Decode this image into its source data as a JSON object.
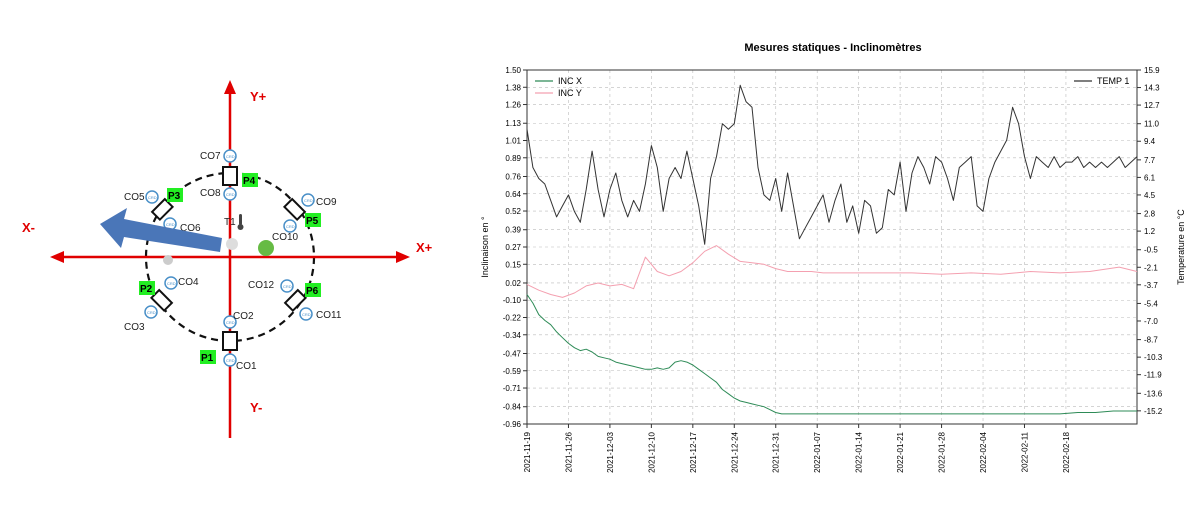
{
  "diagram": {
    "axis_labels": {
      "y_plus": "Y+",
      "y_minus": "Y-",
      "x_plus": "X+",
      "x_minus": "X-"
    },
    "thermometer_label": "T1",
    "co_labels": {
      "co1": "CO1",
      "co2": "CO2",
      "co3": "CO3",
      "co4": "CO4",
      "co5": "CO5",
      "co6": "CO6",
      "co7": "CO7",
      "co8": "CO8",
      "co9": "CO9",
      "co10": "CO10",
      "co11": "CO11",
      "co12": "CO12"
    },
    "p_labels": {
      "p1": "P1",
      "p2": "P2",
      "p3": "P3",
      "p4": "P4",
      "p5": "P5",
      "p6": "P6"
    },
    "sensor_text": "CRD",
    "colors": {
      "axes": "#e00000",
      "p_box": "#22ee22",
      "arrow": "#4a76b8",
      "dot": "#66bb44",
      "sensor": "#4a90c8"
    }
  },
  "chart_data": {
    "type": "line",
    "title": "Mesures statiques - Inclinomètres",
    "ylabel": "Inclinaison en °",
    "y2label": "Temperature en °C",
    "x_ticks": [
      "2021-11-19",
      "2021-11-26",
      "2021-12-03",
      "2021-12-10",
      "2021-12-17",
      "2021-12-24",
      "2021-12-31",
      "2022-01-07",
      "2022-01-14",
      "2022-01-21",
      "2022-01-28",
      "2022-02-04",
      "2022-02-11",
      "2022-02-18"
    ],
    "y_ticks": [
      "1.50",
      "1.38",
      "1.26",
      "1.13",
      "1.01",
      "0.89",
      "0.76",
      "0.64",
      "0.52",
      "0.39",
      "0.27",
      "0.15",
      "0.02",
      "-0.10",
      "-0.22",
      "-0.34",
      "-0.47",
      "-0.59",
      "-0.71",
      "-0.84",
      "-0.96"
    ],
    "y2_ticks": [
      "15.9",
      "14.3",
      "12.7",
      "11.0",
      "9.4",
      "7.7",
      "6.1",
      "4.5",
      "2.8",
      "1.2",
      "-0.5",
      "-2.1",
      "-3.7",
      "-5.4",
      "-7.0",
      "-8.7",
      "-10.3",
      "-11.9",
      "-13.6",
      "-15.2"
    ],
    "ylim": [
      -0.96,
      1.5
    ],
    "y2lim": [
      -16.4,
      15.9
    ],
    "xlim_days": [
      0,
      103
    ],
    "grid": true,
    "legend_left": [
      "INC X",
      "INC Y"
    ],
    "legend_right": [
      "TEMP 1"
    ],
    "colors": {
      "inc_x": "#2e8b57",
      "inc_y": "#f4a0b0",
      "temp": "#333333",
      "grid": "#bbbbbb"
    },
    "series": [
      {
        "name": "INC X",
        "axis": "left",
        "x_days": [
          0,
          1,
          2,
          3,
          4,
          5,
          6,
          7,
          8,
          9,
          10,
          11,
          12,
          13,
          14,
          15,
          16,
          17,
          18,
          19,
          20,
          21,
          22,
          23,
          24,
          25,
          26,
          27,
          28,
          29,
          30,
          31,
          32,
          33,
          34,
          35,
          36,
          37,
          38,
          39,
          40,
          41,
          42,
          43,
          44,
          45,
          46,
          47,
          48,
          49,
          50,
          52,
          55,
          58,
          60,
          63,
          66,
          70,
          73,
          76,
          80,
          83,
          86,
          90,
          93,
          96,
          99,
          101,
          103
        ],
        "values": [
          -0.06,
          -0.12,
          -0.2,
          -0.24,
          -0.27,
          -0.32,
          -0.36,
          -0.4,
          -0.43,
          -0.45,
          -0.44,
          -0.46,
          -0.49,
          -0.5,
          -0.51,
          -0.53,
          -0.54,
          -0.55,
          -0.56,
          -0.57,
          -0.58,
          -0.58,
          -0.57,
          -0.58,
          -0.57,
          -0.53,
          -0.52,
          -0.53,
          -0.55,
          -0.58,
          -0.61,
          -0.64,
          -0.67,
          -0.72,
          -0.75,
          -0.78,
          -0.8,
          -0.81,
          -0.82,
          -0.83,
          -0.84,
          -0.86,
          -0.88,
          -0.89,
          -0.89,
          -0.89,
          -0.89,
          -0.89,
          -0.89,
          -0.89,
          -0.89,
          -0.89,
          -0.89,
          -0.89,
          -0.89,
          -0.89,
          -0.89,
          -0.89,
          -0.89,
          -0.89,
          -0.89,
          -0.89,
          -0.89,
          -0.89,
          -0.88,
          -0.88,
          -0.87,
          -0.87,
          -0.87
        ]
      },
      {
        "name": "INC Y",
        "axis": "left",
        "x_days": [
          0,
          2,
          4,
          6,
          8,
          10,
          12,
          14,
          16,
          18,
          20,
          22,
          24,
          26,
          28,
          30,
          32,
          34,
          36,
          38,
          40,
          42,
          44,
          46,
          48,
          50,
          55,
          60,
          65,
          70,
          75,
          80,
          85,
          90,
          95,
          100,
          103
        ],
        "values": [
          0.01,
          -0.03,
          -0.06,
          -0.08,
          -0.05,
          0.0,
          0.02,
          0.0,
          0.01,
          -0.02,
          0.2,
          0.1,
          0.07,
          0.1,
          0.16,
          0.24,
          0.28,
          0.22,
          0.17,
          0.16,
          0.15,
          0.12,
          0.1,
          0.1,
          0.1,
          0.09,
          0.09,
          0.09,
          0.09,
          0.08,
          0.09,
          0.08,
          0.1,
          0.09,
          0.1,
          0.13,
          0.1
        ]
      },
      {
        "name": "TEMP 1",
        "axis": "right",
        "x_days": [
          0,
          1,
          2,
          3,
          4,
          5,
          6,
          7,
          8,
          9,
          10,
          11,
          12,
          13,
          14,
          15,
          16,
          17,
          18,
          19,
          20,
          21,
          22,
          23,
          24,
          25,
          26,
          27,
          28,
          29,
          30,
          31,
          32,
          33,
          34,
          35,
          36,
          37,
          38,
          39,
          40,
          41,
          42,
          43,
          44,
          45,
          46,
          47,
          48,
          49,
          50,
          51,
          52,
          53,
          54,
          55,
          56,
          57,
          58,
          59,
          60,
          61,
          62,
          63,
          64,
          65,
          66,
          67,
          68,
          69,
          70,
          71,
          72,
          73,
          74,
          75,
          76,
          77,
          78,
          79,
          80,
          81,
          82,
          83,
          84,
          85,
          86,
          87,
          88,
          89,
          90,
          91,
          92,
          93,
          94,
          95,
          96,
          97,
          98,
          99,
          100,
          101,
          102,
          103
        ],
        "values": [
          10.5,
          7.0,
          6.0,
          5.5,
          4.0,
          2.5,
          3.5,
          4.5,
          3.0,
          2.0,
          5.0,
          8.5,
          5.0,
          2.5,
          5.0,
          6.5,
          4.0,
          2.5,
          4.0,
          3.0,
          5.5,
          9.0,
          7.0,
          3.0,
          6.0,
          7.0,
          6.0,
          8.5,
          6.0,
          3.5,
          0.0,
          6.0,
          8.0,
          11.0,
          10.5,
          11.0,
          14.5,
          13.0,
          12.5,
          7.0,
          4.5,
          4.0,
          6.0,
          3.0,
          6.5,
          3.5,
          0.5,
          1.5,
          2.5,
          3.5,
          4.5,
          2.0,
          4.0,
          5.5,
          2.0,
          3.5,
          1.0,
          4.0,
          3.5,
          1.0,
          1.5,
          5.0,
          4.5,
          7.5,
          3.0,
          6.5,
          8.0,
          7.0,
          5.5,
          8.0,
          7.5,
          6.0,
          4.0,
          7.0,
          7.5,
          8.0,
          3.5,
          3.0,
          6.0,
          7.5,
          8.5,
          9.5,
          12.5,
          11.0,
          8.0,
          6.0,
          8.0,
          7.5,
          7.0,
          8.0,
          7.0,
          7.5,
          7.5,
          8.0,
          7.0,
          7.5,
          7.0,
          7.5,
          7.0,
          7.5,
          8.0,
          7.0,
          7.5,
          8.0
        ]
      }
    ]
  }
}
